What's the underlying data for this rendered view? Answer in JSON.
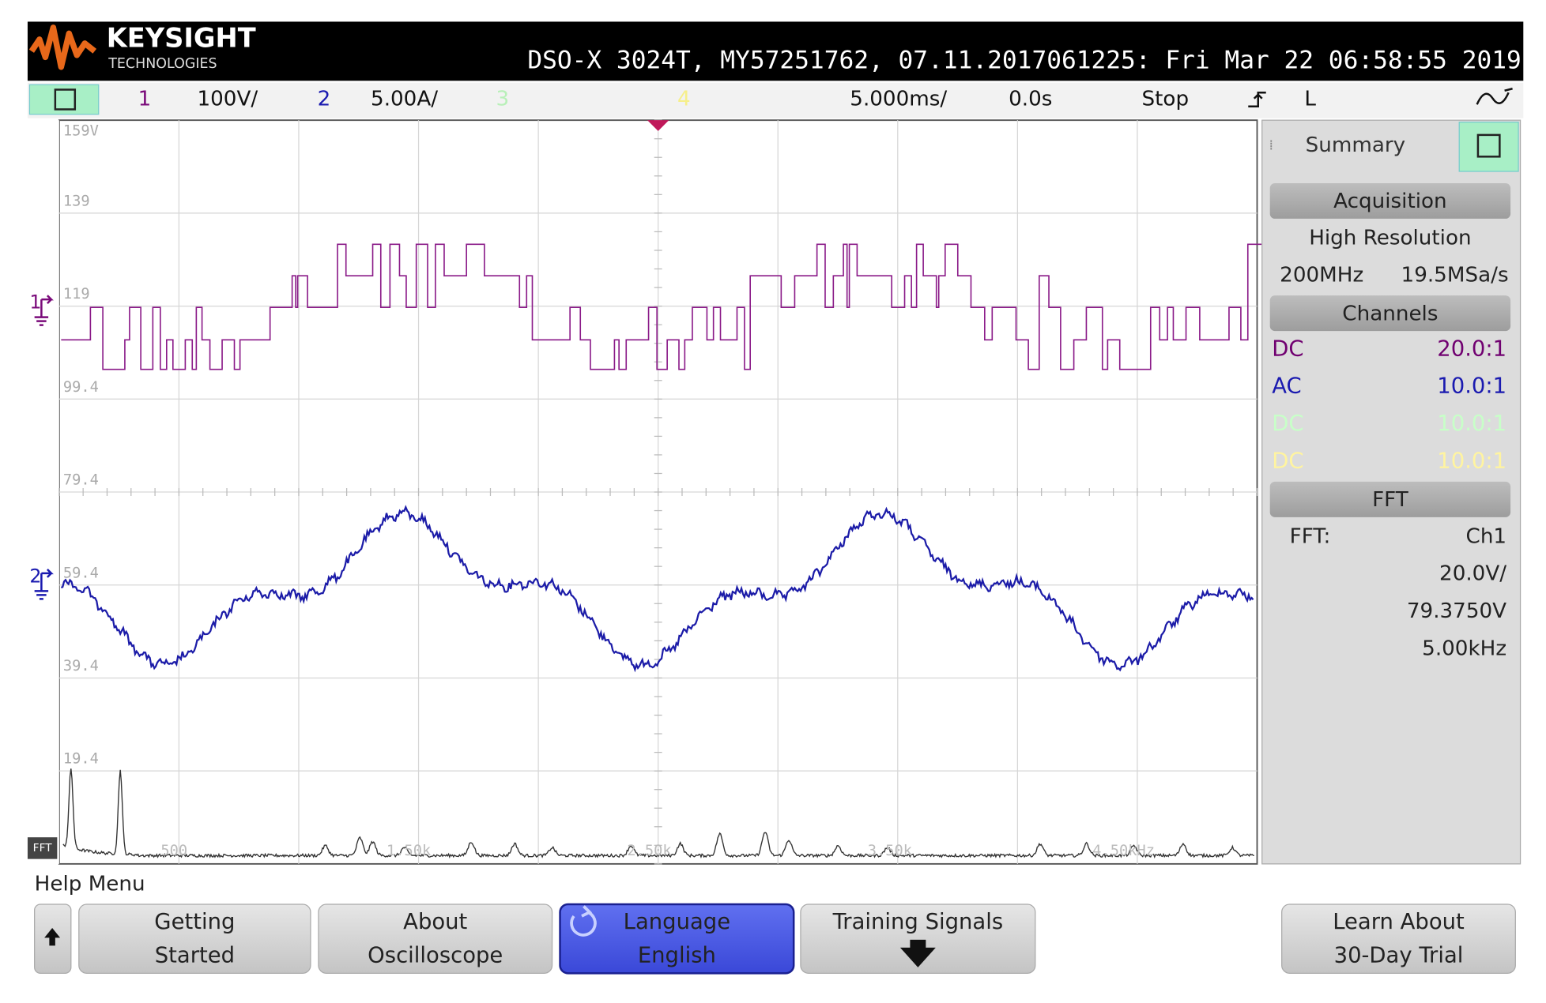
{
  "header": {
    "brand": "KEYSIGHT",
    "brand_sub": "TECHNOLOGIES",
    "info": "DSO-X 3024T, MY57251762, 07.11.2017061225: Fri Mar 22 06:58:55 2019"
  },
  "toolbar": {
    "ch1": "1",
    "ch1_scale": "100V/",
    "ch2": "2",
    "ch2_scale": "5.00A/",
    "ch3": "3",
    "ch4": "4",
    "timebase": "5.000ms/",
    "delay": "0.0s",
    "run_state": "Stop",
    "trigger_mode": "L"
  },
  "graticule": {
    "labels": [
      "159V",
      "139",
      "119",
      "99.4",
      "79.4",
      "59.4",
      "39.4",
      "19.4"
    ],
    "channel_markers": [
      "1",
      "2"
    ],
    "fft_label": "FFT",
    "fft_freq_labels": [
      "500",
      "1.50k",
      "2.50k",
      "3.50k",
      "4.50kHz"
    ]
  },
  "side_panel": {
    "title": "Summary",
    "acquisition": "Acquisition",
    "mode": "High Resolution",
    "bandwidth": "200MHz",
    "sample_rate": "19.5MSa/s",
    "channels": "Channels",
    "channel_rows": [
      {
        "coupling": "DC",
        "probe": "20.0:1"
      },
      {
        "coupling": "AC",
        "probe": "10.0:1"
      },
      {
        "coupling": "DC",
        "probe": "10.0:1"
      },
      {
        "coupling": "DC",
        "probe": "10.0:1"
      }
    ],
    "fft": "FFT",
    "fft_source_label": "FFT:",
    "fft_source": "Ch1",
    "fft_scale": "20.0V/",
    "fft_offset": "79.3750V",
    "fft_span": "5.00kHz"
  },
  "help_menu": {
    "title": "Help Menu",
    "buttons": [
      {
        "lines": [
          "Getting",
          "Started"
        ]
      },
      {
        "lines": [
          "About",
          "Oscilloscope"
        ]
      },
      {
        "lines": [
          "Language",
          "English"
        ]
      },
      {
        "lines": [
          "Training Signals"
        ]
      },
      {
        "lines": [
          "Learn About",
          "30-Day Trial"
        ]
      }
    ]
  }
}
